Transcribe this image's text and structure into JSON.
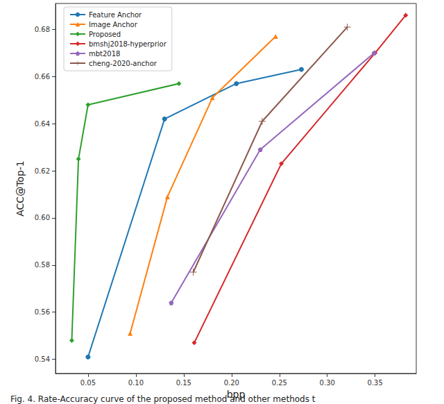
{
  "chart_data": {
    "type": "line",
    "caption": "Fig. 4. Rate-Accuracy curve of the proposed method and other methods t",
    "x_label": "bpp",
    "y_label": "ACC@Top-1",
    "xlim": [
      0.016,
      0.393
    ],
    "ylim": [
      0.534,
      0.691
    ],
    "xticks": [
      0.05,
      {
        "value": 0.1,
        "label": "0.10"
      },
      0.15,
      {
        "value": 0.2,
        "label": "0.20"
      },
      0.25,
      {
        "value": 0.3,
        "label": "0.30"
      },
      0.35
    ],
    "yticks": [
      0.54,
      0.56,
      0.58,
      {
        "value": 0.6,
        "label": "0.60"
      },
      0.62,
      0.64,
      0.66,
      0.68
    ],
    "grid": false,
    "legend": "upper left",
    "series": [
      {
        "name": "Feature Anchor",
        "color": "#1f77b4",
        "marker": "circle",
        "x": [
          0.05,
          0.13,
          0.205,
          0.273
        ],
        "values": [
          0.541,
          0.642,
          0.657,
          0.663
        ]
      },
      {
        "name": "Image Anchor",
        "color": "#ff7f0e",
        "marker": "triangle",
        "x": [
          0.094,
          0.133,
          0.18,
          0.246
        ],
        "values": [
          0.551,
          0.609,
          0.651,
          0.677
        ]
      },
      {
        "name": "Proposed",
        "color": "#2ca02c",
        "marker": "diamond",
        "x": [
          0.033,
          0.04,
          0.05,
          0.145
        ],
        "values": [
          0.548,
          0.625,
          0.648,
          0.657
        ]
      },
      {
        "name": "bmshj2018-hyperprior",
        "color": "#d62728",
        "marker": "diamond",
        "x": [
          0.161,
          0.252,
          0.35,
          0.382
        ],
        "values": [
          0.547,
          0.623,
          0.67,
          0.686
        ]
      },
      {
        "name": "mbt2018",
        "color": "#9467bd",
        "marker": "pentagon",
        "x": [
          0.137,
          0.23,
          0.349
        ],
        "values": [
          0.564,
          0.629,
          0.67
        ]
      },
      {
        "name": "cheng-2020-anchor",
        "color": "#8c564b",
        "marker": "plus",
        "x": [
          0.16,
          0.232,
          0.321
        ],
        "values": [
          0.577,
          0.641,
          0.681
        ]
      }
    ]
  }
}
